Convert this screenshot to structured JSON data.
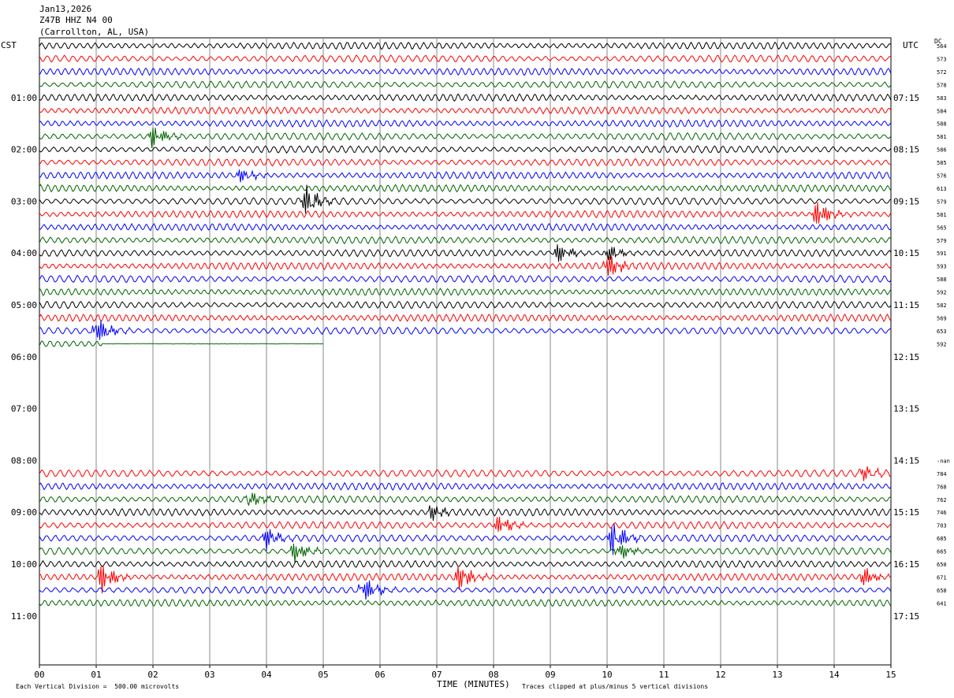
{
  "header": {
    "date": "Jan13,2026",
    "station": "Z47B HHZ N4 00",
    "location": "(Carrollton, AL, USA)"
  },
  "left_tz": "CST",
  "right_tz": "UTC",
  "dc_label": "DC",
  "footer": {
    "scale": "Each Vertical Division =  500.00 microvolts",
    "xlabel": "TIME (MINUTES)",
    "clip": "Traces clipped at plus/minus 5 vertical divisions"
  },
  "chart_data": {
    "type": "line",
    "title": "Z47B HHZ N4 00",
    "xlabel": "TIME (MINUTES)",
    "xlim": [
      0,
      15
    ],
    "x_ticks": [
      "00",
      "01",
      "02",
      "03",
      "04",
      "05",
      "06",
      "07",
      "08",
      "09",
      "10",
      "11",
      "12",
      "13",
      "14",
      "15"
    ],
    "left_time_labels": [
      "01:00",
      "02:00",
      "03:00",
      "04:00",
      "05:00",
      "06:00",
      "07:00",
      "08:00",
      "09:00",
      "10:00",
      "11:00"
    ],
    "right_time_labels": [
      "07:15",
      "08:15",
      "09:15",
      "10:15",
      "11:15",
      "12:15",
      "13:15",
      "14:15",
      "15:15",
      "16:15",
      "17:15"
    ],
    "colors": [
      "#000000",
      "#ff0000",
      "#0000ff",
      "#006400"
    ],
    "dc_values": [
      "564",
      "573",
      "572",
      "578",
      "583",
      "584",
      "588",
      "581",
      "586",
      "585",
      "576",
      "613",
      "579",
      "581",
      "565",
      "579",
      "591",
      "593",
      "588",
      "592",
      "582",
      "569",
      "653",
      "592",
      "",
      "",
      "",
      "",
      "",
      "",
      "",
      "",
      "-nan",
      "784",
      "768",
      "762",
      "746",
      "703",
      "685",
      "665",
      "650",
      "671",
      "658",
      "641"
    ],
    "last_partial_trace_minutes": 5,
    "events": [
      {
        "trace": 7,
        "minute": 2.0,
        "amplitude": 2.5
      },
      {
        "trace": 10,
        "minute": 3.5,
        "amplitude": 1.6
      },
      {
        "trace": 12,
        "minute": 4.7,
        "amplitude": 3.0
      },
      {
        "trace": 13,
        "minute": 13.7,
        "amplitude": 2.8
      },
      {
        "trace": 16,
        "minute": 9.1,
        "amplitude": 2.2
      },
      {
        "trace": 16,
        "minute": 10.0,
        "amplitude": 2.0
      },
      {
        "trace": 17,
        "minute": 10.0,
        "amplitude": 2.5
      },
      {
        "trace": 22,
        "minute": 1.0,
        "amplitude": 3.0
      },
      {
        "trace": 33,
        "minute": 14.5,
        "amplitude": 1.5
      },
      {
        "trace": 35,
        "minute": 3.7,
        "amplitude": 1.6
      },
      {
        "trace": 36,
        "minute": 6.9,
        "amplitude": 1.5
      },
      {
        "trace": 37,
        "minute": 8.1,
        "amplitude": 2.2
      },
      {
        "trace": 38,
        "minute": 4.0,
        "amplitude": 2.0
      },
      {
        "trace": 38,
        "minute": 10.1,
        "amplitude": 3.5
      },
      {
        "trace": 39,
        "minute": 4.5,
        "amplitude": 2.2
      },
      {
        "trace": 39,
        "minute": 10.2,
        "amplitude": 2.0
      },
      {
        "trace": 41,
        "minute": 1.1,
        "amplitude": 3.0
      },
      {
        "trace": 41,
        "minute": 7.4,
        "amplitude": 2.6
      },
      {
        "trace": 41,
        "minute": 14.5,
        "amplitude": 2.2
      },
      {
        "trace": 42,
        "minute": 5.7,
        "amplitude": 3.0
      }
    ]
  }
}
